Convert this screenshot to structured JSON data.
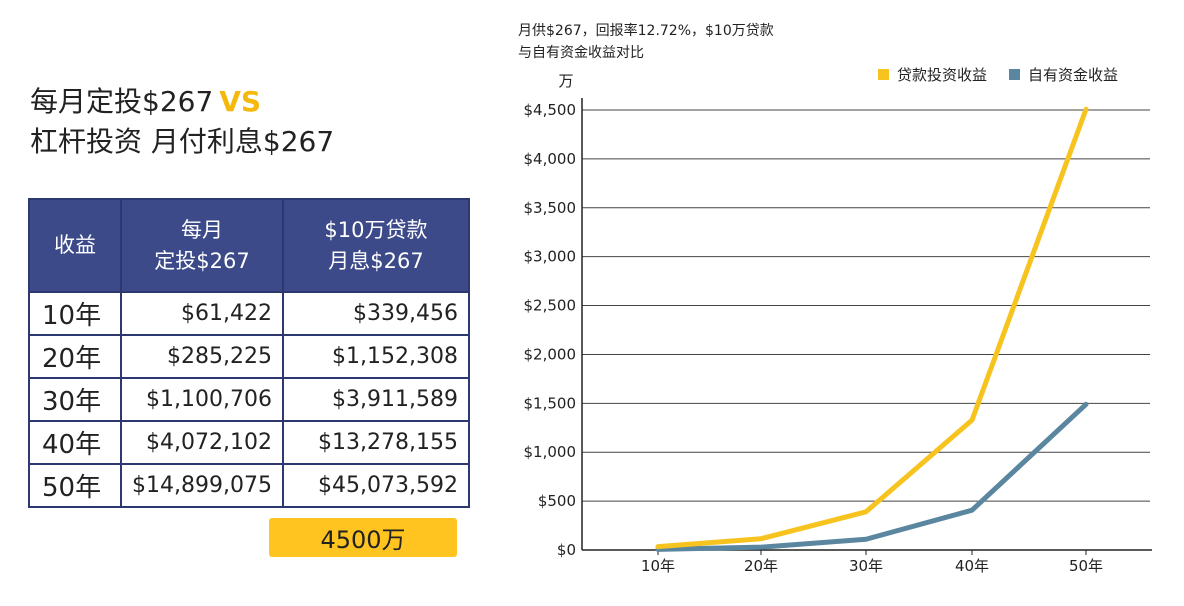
{
  "headline": {
    "line1": "每月定投$267",
    "vs": "VS",
    "line2": "杠杆投资 月付利息$267"
  },
  "table": {
    "headers": [
      "收益",
      "每月\n定投$267",
      "$10万贷款\n月息$267"
    ],
    "rows": [
      {
        "year": "10年",
        "a": "$61,422",
        "b": "$339,456"
      },
      {
        "year": "20年",
        "a": "$285,225",
        "b": "$1,152,308"
      },
      {
        "year": "30年",
        "a": "$1,100,706",
        "b": "$3,911,589"
      },
      {
        "year": "40年",
        "a": "$4,072,102",
        "b": "$13,278,155"
      },
      {
        "year": "50年",
        "a": "$14,899,075",
        "b": "$45,073,592"
      }
    ],
    "total_badge": "4500万"
  },
  "chart_data": {
    "type": "line",
    "title": "月供$267，回报率12.72%，$10万贷款\n与自有资金收益对比",
    "ylabel": "万",
    "categories": [
      "10年",
      "20年",
      "30年",
      "40年",
      "50年"
    ],
    "yticks": [
      "$0",
      "$500",
      "$1,000",
      "$1,500",
      "$2,000",
      "$2,500",
      "$3,000",
      "$3,500",
      "$4,000",
      "$4,500"
    ],
    "ylim": [
      0,
      4500
    ],
    "grid": true,
    "legend_position": "top-right",
    "series": [
      {
        "name": "贷款投资收益",
        "color": "#f7c41f",
        "values": [
          34,
          115,
          391,
          1328,
          4507
        ]
      },
      {
        "name": "自有资金收益",
        "color": "#5b86a0",
        "values": [
          6,
          29,
          110,
          407,
          1490
        ]
      }
    ]
  }
}
